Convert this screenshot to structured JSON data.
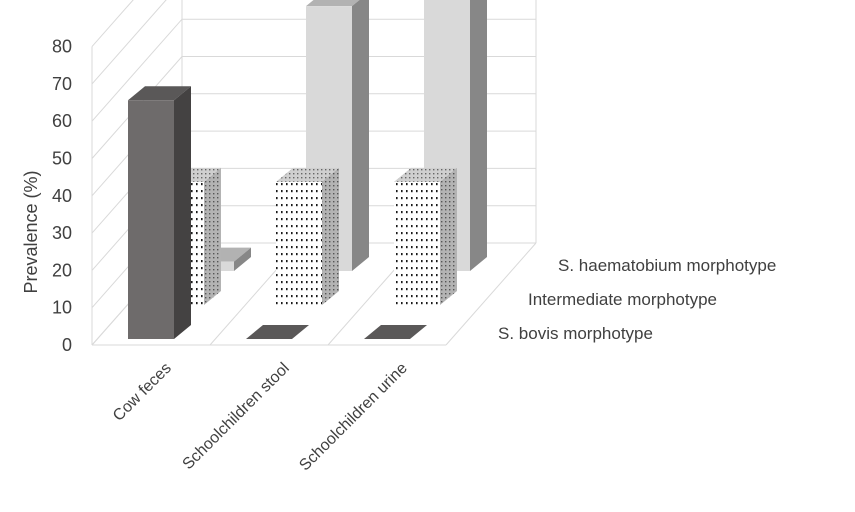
{
  "chart_data": {
    "type": "bar",
    "variant": "3d-clustered-depth",
    "ylabel": "Prevalence (%)",
    "ylim": [
      0,
      80
    ],
    "yticks": [
      0,
      10,
      20,
      30,
      40,
      50,
      60,
      70,
      80
    ],
    "grid": true,
    "categories": [
      "Cow feces",
      "Schoolchildren stool",
      "Schoolchildren urine"
    ],
    "series": [
      {
        "name": "S. bovis morphotype",
        "values": [
          64,
          0,
          0
        ],
        "color": "#6e6b6b"
      },
      {
        "name": "Intermediate morphotype",
        "values": [
          33,
          33,
          33
        ],
        "color": "#ffffff",
        "pattern": "dots"
      },
      {
        "name": "S. haematobium morphotype",
        "values": [
          2.5,
          71,
          74
        ],
        "color": "#d9d9d9"
      }
    ]
  }
}
